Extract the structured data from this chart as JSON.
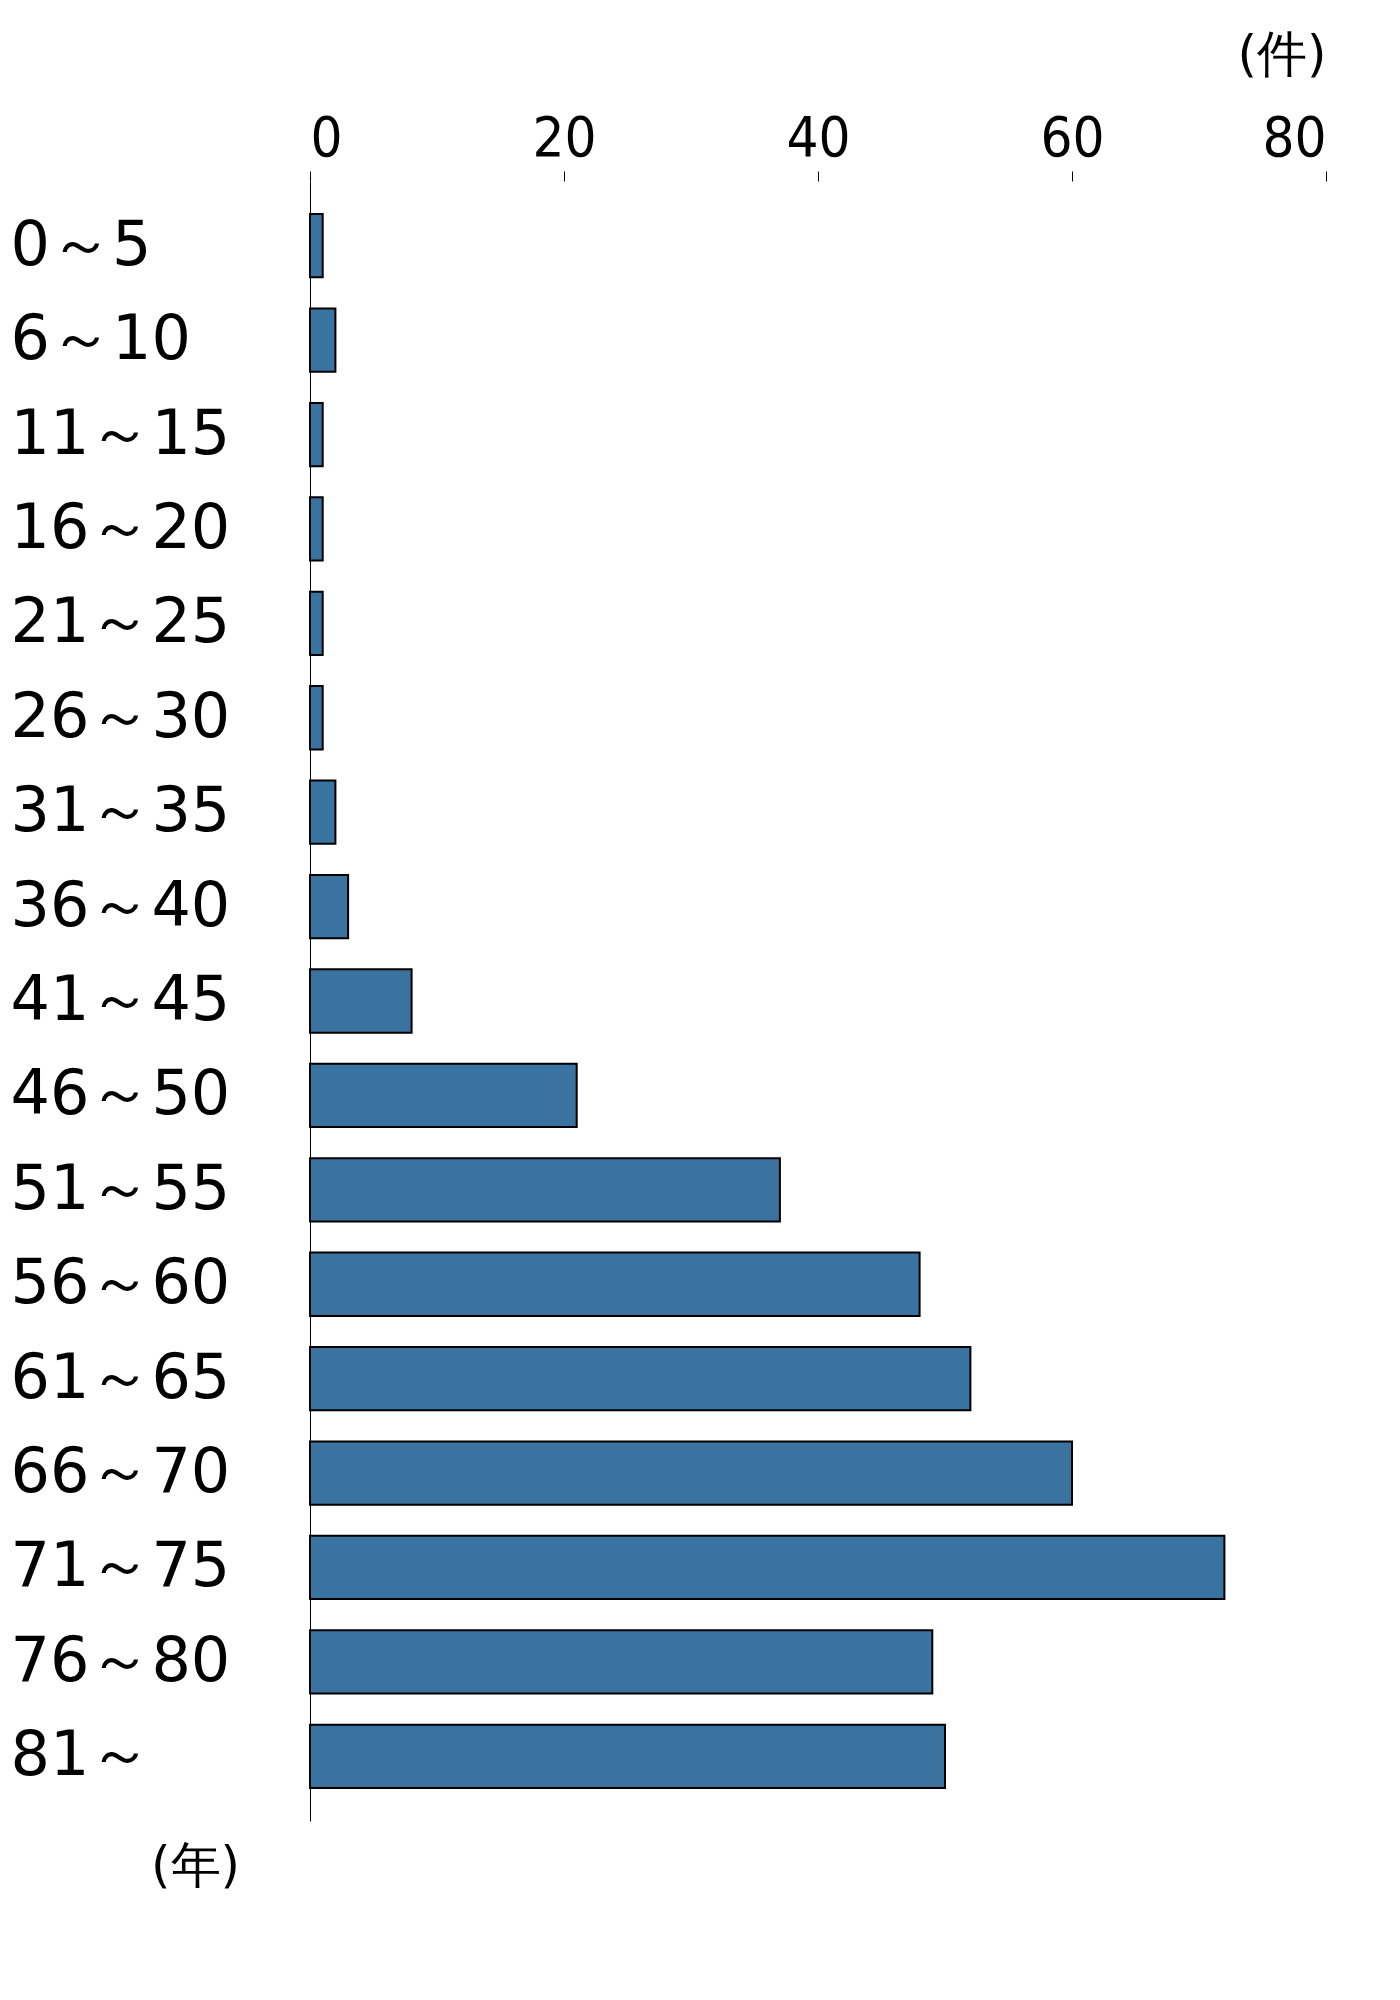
{
  "chart_data": {
    "type": "bar",
    "orientation": "horizontal",
    "xlabel": "(件)",
    "ylabel": "(年)",
    "categories": [
      "0～5",
      "6～10",
      "11～15",
      "16～20",
      "21～25",
      "26～30",
      "31～35",
      "36～40",
      "41～45",
      "46～50",
      "51～55",
      "56～60",
      "61～65",
      "66～70",
      "71～75",
      "76～80",
      "81～"
    ],
    "values": [
      1,
      2,
      1,
      1,
      1,
      1,
      2,
      3,
      8,
      21,
      37,
      48,
      52,
      60,
      72,
      49,
      50
    ],
    "color": "#3a72a0",
    "xlim": [
      0,
      80
    ],
    "xticks": [
      0,
      20,
      40,
      60,
      80
    ],
    "grid": false
  }
}
